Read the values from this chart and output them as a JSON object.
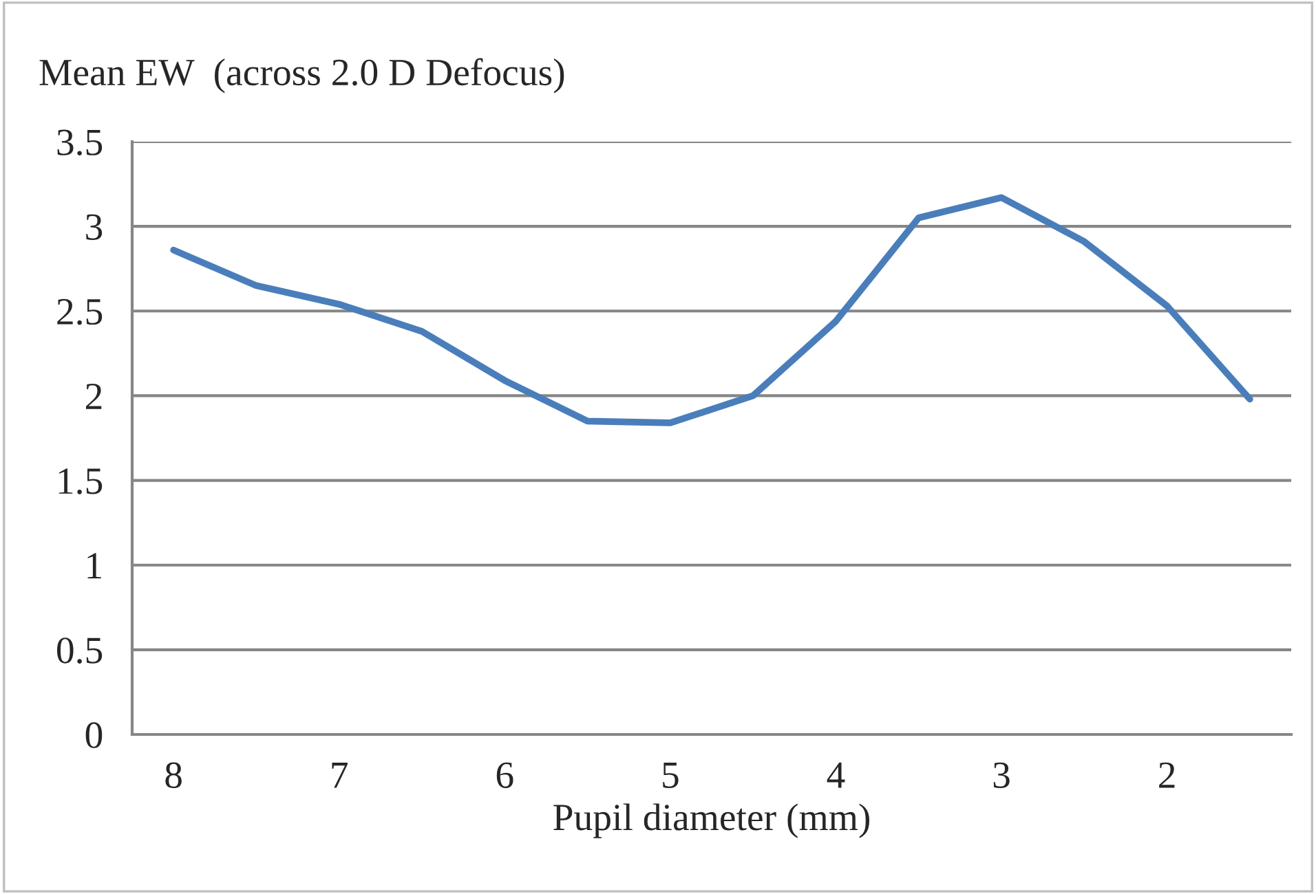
{
  "chart_data": {
    "type": "line",
    "title": "Mean EW  (across 2.0 D Defocus)",
    "xlabel": "Pupil diameter (mm)",
    "categories": [
      "8",
      null,
      "7",
      null,
      "6",
      null,
      "5",
      null,
      "4",
      null,
      "3",
      null,
      "2",
      null
    ],
    "series": [
      {
        "color": "#4a7ebb",
        "values": [
          2.86,
          2.65,
          2.54,
          2.38,
          2.09,
          1.85,
          1.84,
          2.0,
          2.44,
          3.05,
          3.17,
          2.91,
          2.53,
          1.98
        ]
      }
    ],
    "ylim": [
      0,
      3.5
    ],
    "yticks": [
      0,
      0.5,
      1,
      1.5,
      2,
      2.5,
      3,
      3.5
    ],
    "grid": "y",
    "legend": false,
    "marker": "none",
    "line_style": "solid"
  }
}
